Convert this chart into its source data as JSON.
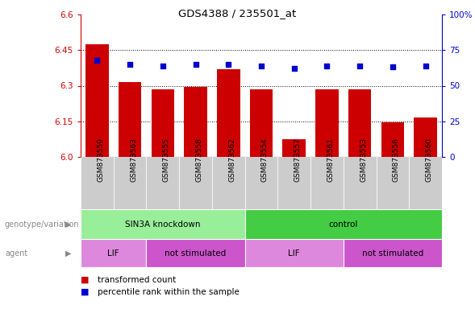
{
  "title": "GDS4388 / 235501_at",
  "samples": [
    "GSM873559",
    "GSM873563",
    "GSM873555",
    "GSM873558",
    "GSM873562",
    "GSM873554",
    "GSM873557",
    "GSM873561",
    "GSM873553",
    "GSM873556",
    "GSM873560"
  ],
  "bar_values": [
    6.475,
    6.315,
    6.285,
    6.295,
    6.37,
    6.285,
    6.075,
    6.285,
    6.285,
    6.145,
    6.165
  ],
  "percentile_values": [
    68,
    65,
    64,
    65,
    65,
    64,
    62,
    64,
    64,
    63,
    64
  ],
  "ylim_left": [
    6.0,
    6.6
  ],
  "ylim_right": [
    0,
    100
  ],
  "yticks_left": [
    6.0,
    6.15,
    6.3,
    6.45,
    6.6
  ],
  "yticks_right": [
    0,
    25,
    50,
    75,
    100
  ],
  "bar_color": "#cc0000",
  "dot_color": "#0000cc",
  "bar_bottom": 6.0,
  "groups": [
    {
      "label": "SIN3A knockdown",
      "start": 0,
      "end": 5,
      "color": "#99ee99"
    },
    {
      "label": "control",
      "start": 5,
      "end": 11,
      "color": "#44cc44"
    }
  ],
  "agents": [
    {
      "label": "LIF",
      "start": 0,
      "end": 2,
      "color": "#dd88dd"
    },
    {
      "label": "not stimulated",
      "start": 2,
      "end": 5,
      "color": "#cc55cc"
    },
    {
      "label": "LIF",
      "start": 5,
      "end": 8,
      "color": "#dd88dd"
    },
    {
      "label": "not stimulated",
      "start": 8,
      "end": 11,
      "color": "#cc55cc"
    }
  ],
  "left_label_genotype": "genotype/variation",
  "left_label_agent": "agent",
  "legend_red": "transformed count",
  "legend_blue": "percentile rank within the sample",
  "grid_linestyle": ":",
  "sample_bg_color": "#cccccc",
  "chart_bg_color": "#ffffff"
}
